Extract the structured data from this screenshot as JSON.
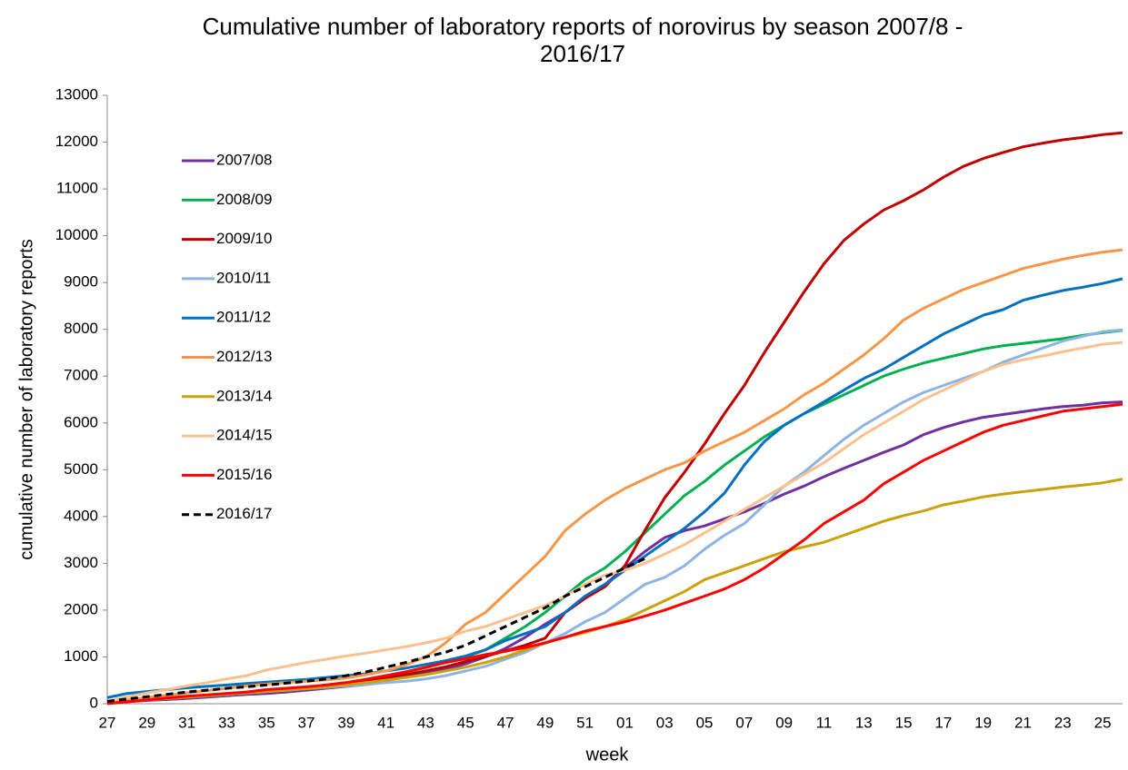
{
  "chart_data": {
    "type": "line",
    "title": "Cumulative number of laboratory reports of norovirus by season 2007/8 - 2016/17",
    "x_label": "week",
    "y_label": "cumulative number of laboratory reports",
    "categories": [
      "27",
      null,
      "29",
      null,
      "31",
      null,
      "33",
      null,
      "35",
      null,
      "37",
      null,
      "39",
      null,
      "41",
      null,
      "43",
      null,
      "45",
      null,
      "47",
      null,
      "49",
      null,
      "51",
      null,
      "01",
      null,
      "03",
      null,
      "05",
      null,
      "07",
      null,
      "09",
      null,
      "11",
      null,
      "13",
      null,
      "15",
      null,
      "17",
      null,
      "19",
      null,
      "21",
      null,
      "23",
      null,
      "25",
      null
    ],
    "ylim": [
      0,
      13000
    ],
    "yticks": [
      0,
      1000,
      2000,
      3000,
      4000,
      5000,
      6000,
      7000,
      8000,
      9000,
      10000,
      11000,
      12000,
      13000
    ],
    "grid": false,
    "legend": "upper left",
    "series": [
      {
        "name": "2007/08",
        "color": "#7030a0",
        "values": [
          20,
          40,
          70,
          90,
          110,
          140,
          170,
          200,
          220,
          250,
          290,
          330,
          370,
          410,
          500,
          570,
          650,
          740,
          850,
          1000,
          1180,
          1420,
          1700,
          1950,
          2250,
          2550,
          2900,
          3250,
          3550,
          3700,
          3800,
          3950,
          4100,
          4280,
          4480,
          4650,
          4850,
          5030,
          5200,
          5370,
          5530,
          5750,
          5900,
          6020,
          6120,
          6180,
          6240,
          6300,
          6350,
          6380,
          6430,
          6450
        ]
      },
      {
        "name": "2008/09",
        "color": "#00b050",
        "values": [
          30,
          60,
          90,
          120,
          150,
          180,
          210,
          240,
          270,
          310,
          350,
          400,
          450,
          520,
          600,
          680,
          770,
          880,
          1000,
          1150,
          1400,
          1650,
          1950,
          2300,
          2650,
          2900,
          3250,
          3650,
          4050,
          4450,
          4750,
          5100,
          5400,
          5700,
          5950,
          6200,
          6400,
          6600,
          6800,
          7000,
          7150,
          7280,
          7380,
          7480,
          7580,
          7650,
          7700,
          7750,
          7800,
          7870,
          7930,
          7980
        ]
      },
      {
        "name": "2009/10",
        "color": "#c00000",
        "values": [
          30,
          60,
          90,
          120,
          150,
          180,
          210,
          240,
          270,
          300,
          340,
          390,
          440,
          500,
          560,
          620,
          700,
          790,
          900,
          1010,
          1130,
          1250,
          1400,
          1950,
          2250,
          2500,
          2950,
          3700,
          4400,
          4950,
          5550,
          6200,
          6800,
          7500,
          8150,
          8800,
          9400,
          9900,
          10250,
          10550,
          10750,
          10980,
          11250,
          11480,
          11650,
          11780,
          11900,
          11980,
          12050,
          12100,
          12160,
          12200
        ]
      },
      {
        "name": "2010/11",
        "color": "#8db4e2",
        "values": [
          20,
          50,
          80,
          110,
          140,
          170,
          200,
          230,
          260,
          290,
          320,
          350,
          380,
          410,
          450,
          480,
          530,
          600,
          700,
          800,
          950,
          1100,
          1300,
          1500,
          1750,
          1950,
          2250,
          2550,
          2700,
          2950,
          3300,
          3600,
          3850,
          4250,
          4650,
          4950,
          5300,
          5650,
          5950,
          6200,
          6450,
          6650,
          6800,
          6950,
          7100,
          7300,
          7450,
          7600,
          7750,
          7850,
          7950,
          7990
        ]
      },
      {
        "name": "2011/12",
        "color": "#0070c0",
        "values": [
          130,
          220,
          260,
          300,
          340,
          370,
          400,
          430,
          460,
          490,
          520,
          560,
          600,
          640,
          700,
          760,
          840,
          920,
          1020,
          1150,
          1350,
          1500,
          1650,
          1950,
          2300,
          2550,
          2850,
          3150,
          3450,
          3750,
          4100,
          4500,
          5100,
          5600,
          5950,
          6200,
          6450,
          6700,
          6950,
          7150,
          7400,
          7650,
          7900,
          8100,
          8300,
          8420,
          8620,
          8730,
          8830,
          8900,
          8980,
          9080
        ]
      },
      {
        "name": "2012/13",
        "color": "#f79646",
        "values": [
          30,
          80,
          130,
          180,
          230,
          280,
          330,
          380,
          420,
          450,
          480,
          510,
          550,
          620,
          700,
          830,
          1000,
          1300,
          1700,
          1950,
          2350,
          2750,
          3150,
          3700,
          4050,
          4350,
          4600,
          4800,
          5000,
          5150,
          5400,
          5600,
          5800,
          6050,
          6300,
          6600,
          6850,
          7150,
          7450,
          7800,
          8200,
          8450,
          8650,
          8850,
          9000,
          9150,
          9300,
          9400,
          9500,
          9580,
          9650,
          9700
        ]
      },
      {
        "name": "2013/14",
        "color": "#c9a20a",
        "values": [
          20,
          50,
          80,
          110,
          140,
          170,
          200,
          230,
          260,
          290,
          320,
          360,
          400,
          450,
          500,
          560,
          620,
          700,
          780,
          880,
          1000,
          1150,
          1300,
          1420,
          1520,
          1650,
          1800,
          2000,
          2200,
          2400,
          2650,
          2800,
          2950,
          3100,
          3250,
          3350,
          3450,
          3600,
          3750,
          3900,
          4020,
          4120,
          4250,
          4330,
          4420,
          4480,
          4530,
          4580,
          4630,
          4670,
          4720,
          4800
        ]
      },
      {
        "name": "2014/15",
        "color": "#fac090",
        "values": [
          50,
          150,
          230,
          300,
          380,
          450,
          530,
          600,
          720,
          800,
          880,
          950,
          1020,
          1080,
          1150,
          1220,
          1300,
          1400,
          1550,
          1650,
          1800,
          1950,
          2100,
          2300,
          2550,
          2750,
          2850,
          3000,
          3200,
          3400,
          3650,
          3900,
          4150,
          4400,
          4650,
          4900,
          5150,
          5450,
          5750,
          6000,
          6250,
          6500,
          6700,
          6900,
          7100,
          7250,
          7350,
          7430,
          7520,
          7600,
          7680,
          7720
        ]
      },
      {
        "name": "2015/16",
        "color": "#ff0000",
        "values": [
          0,
          40,
          80,
          120,
          160,
          190,
          220,
          250,
          300,
          330,
          360,
          400,
          450,
          520,
          600,
          680,
          780,
          880,
          960,
          1050,
          1120,
          1200,
          1300,
          1420,
          1550,
          1650,
          1750,
          1870,
          2000,
          2150,
          2300,
          2450,
          2650,
          2900,
          3200,
          3500,
          3850,
          4100,
          4350,
          4700,
          4950,
          5200,
          5400,
          5600,
          5800,
          5950,
          6050,
          6150,
          6250,
          6300,
          6350,
          6400
        ]
      },
      {
        "name": "2016/17",
        "color": "#000000",
        "dashed": true,
        "values": [
          50,
          100,
          150,
          200,
          250,
          290,
          330,
          360,
          400,
          440,
          480,
          530,
          600,
          680,
          780,
          880,
          1000,
          1100,
          1250,
          1450,
          1650,
          1850,
          2050,
          2300,
          2500,
          2700,
          2900,
          3100,
          null,
          null,
          null,
          null,
          null,
          null,
          null,
          null,
          null,
          null,
          null,
          null,
          null,
          null,
          null,
          null,
          null,
          null,
          null,
          null,
          null,
          null,
          null,
          null
        ]
      }
    ]
  }
}
